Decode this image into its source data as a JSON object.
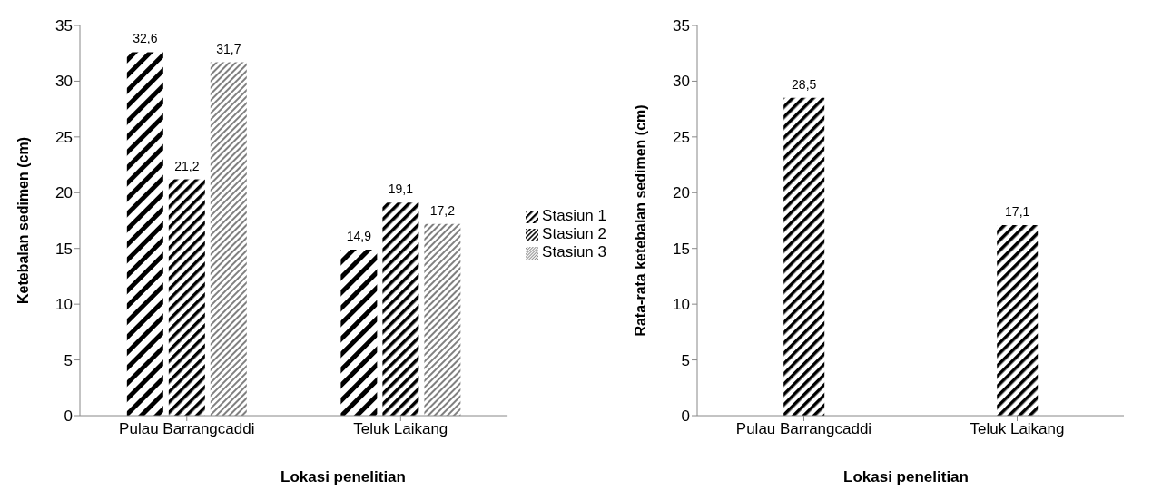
{
  "chart_data": [
    {
      "type": "bar",
      "xlabel": "Lokasi penelitian",
      "ylabel": "Ketebalan sedimen (cm)",
      "categories": [
        "Pulau Barrangcaddi",
        "Teluk Laikang"
      ],
      "series": [
        {
          "name": "Stasiun 1",
          "color": "#000000",
          "values": [
            32.6,
            14.9
          ],
          "value_labels": [
            "32,6",
            "14,9"
          ]
        },
        {
          "name": "Stasiun 2",
          "color": "#000000",
          "values": [
            21.2,
            19.1
          ],
          "value_labels": [
            "21,2",
            "19,1"
          ]
        },
        {
          "name": "Stasiun 3",
          "color": "#808080",
          "values": [
            31.7,
            17.2
          ],
          "value_labels": [
            "31,7",
            "17,2"
          ]
        }
      ],
      "ylim": [
        0,
        35
      ],
      "yticks": [
        0,
        5,
        10,
        15,
        20,
        25,
        30,
        35
      ],
      "grid": false,
      "legend": "right"
    },
    {
      "type": "bar",
      "xlabel": "Lokasi penelitian",
      "ylabel": "Rata-rata ketebalan sedimen (cm)",
      "categories": [
        "Pulau Barrangcaddi",
        "Teluk Laikang"
      ],
      "series": [
        {
          "color": "#000000",
          "values": [
            28.5,
            17.1
          ],
          "value_labels": [
            "28,5",
            "17,1"
          ]
        }
      ],
      "ylim": [
        0,
        35
      ],
      "yticks": [
        0,
        5,
        10,
        15,
        20,
        25,
        30,
        35
      ],
      "grid": false,
      "legend": false
    }
  ]
}
